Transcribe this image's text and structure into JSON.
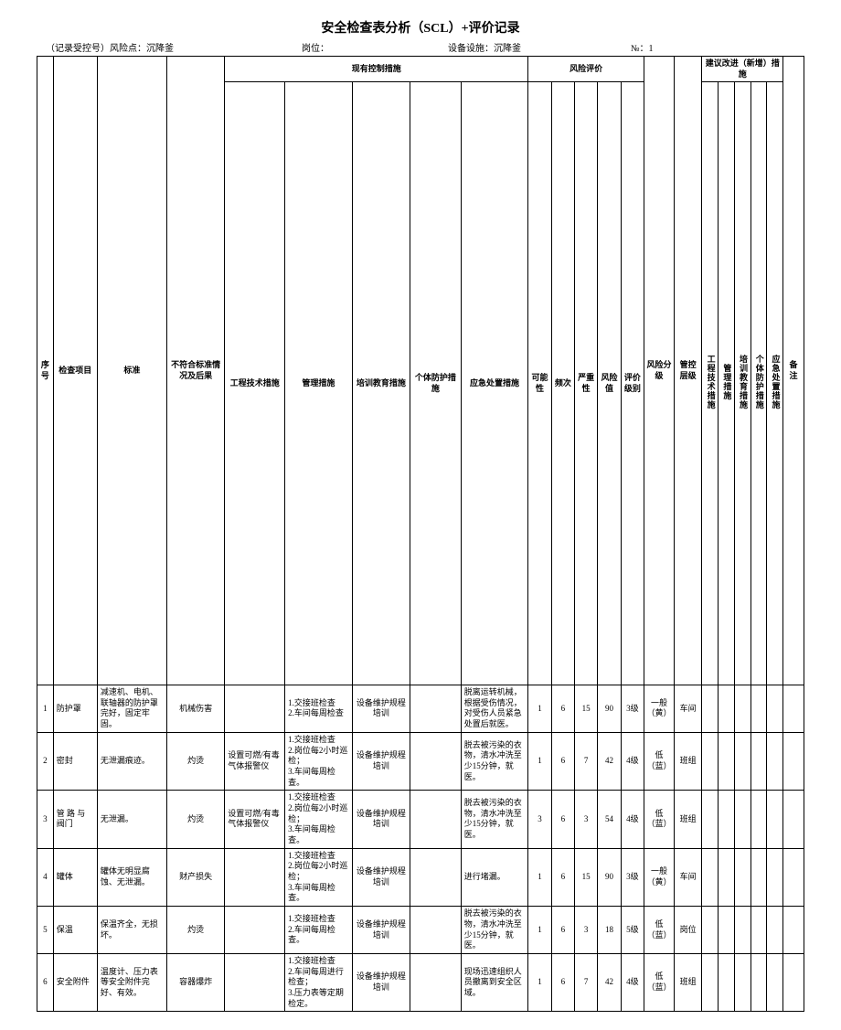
{
  "title": "安全检查表分析（SCL）+评价记录",
  "meta": {
    "record": "（记录受控号）风险点：沉降釜",
    "post": "岗位：",
    "equip": "设备设施：沉降釜",
    "no": "№：1"
  },
  "headers": {
    "seq": "序号",
    "item": "检查项目",
    "std": "标准",
    "nc": "不符合标准情况及后果",
    "measures_group": "现有控制措施",
    "risk_group": "风险评价",
    "suggest_group": "建议改进（新增）措施",
    "m1": "工程技术措施",
    "m2": "管理措施",
    "m3": "培训教育措施",
    "m4": "个体防护措施",
    "m5": "应急处置措施",
    "r1": "可能性",
    "r2": "频次",
    "r3": "严重性",
    "r4": "风险值",
    "r5": "评价级别",
    "riskg": "风险分级",
    "ctrl": "管控层级",
    "s1": "工程技术措施",
    "s2": "管理措施",
    "s3": "培训教育措施",
    "s4": "个体防护措施",
    "s5": "应急处置措施",
    "note": "备注"
  },
  "rows": [
    {
      "seq": "1",
      "item": "防护罩",
      "std": "减速机、电机、联轴器的防护罩完好，固定牢固。",
      "nc": "机械伤害",
      "m1": "",
      "m2": "1.交接班检查\n2.车间每周检查",
      "m3": "设备维护规程培训",
      "m4": "",
      "m5": "脱离运转机械，根据受伤情况，对受伤人员紧急处置后就医。",
      "r1": "1",
      "r2": "6",
      "r3": "15",
      "r4": "90",
      "r5": "3级",
      "riskg": "一般（黄）",
      "ctrl": "车间"
    },
    {
      "seq": "2",
      "item": "密封",
      "std": "无泄漏痕迹。",
      "nc": "灼烫",
      "m1": "设置可燃/有毒气体报警仪",
      "m2": "1.交接班检查\n2.岗位每2小时巡检；\n3.车间每周检查。",
      "m3": "设备维护规程培训",
      "m4": "",
      "m5": "脱去被污染的衣物，清水冲洗至少15分钟，就医。",
      "r1": "1",
      "r2": "6",
      "r3": "7",
      "r4": "42",
      "r5": "4级",
      "riskg": "低（蓝）",
      "ctrl": "班组"
    },
    {
      "seq": "3",
      "item": "管 路 与 阀门",
      "std": "无泄漏。",
      "nc": "灼烫",
      "m1": "设置可燃/有毒气体报警仪",
      "m2": "1.交接班检查\n2.岗位每2小时巡检；\n3.车间每周检查。",
      "m3": "设备维护规程培训",
      "m4": "",
      "m5": "脱去被污染的衣物，清水冲洗至少15分钟，就医。",
      "r1": "3",
      "r2": "6",
      "r3": "3",
      "r4": "54",
      "r5": "4级",
      "riskg": "低（蓝）",
      "ctrl": "班组"
    },
    {
      "seq": "4",
      "item": "罐体",
      "std": "罐体无明显腐蚀、无泄漏。",
      "nc": "财产损失",
      "m1": "",
      "m2": "1.交接班检查\n2.岗位每2小时巡检；\n3.车间每周检查。",
      "m3": "设备维护规程培训",
      "m4": "",
      "m5": "进行堵漏。",
      "r1": "1",
      "r2": "6",
      "r3": "15",
      "r4": "90",
      "r5": "3级",
      "riskg": "一般（黄）",
      "ctrl": "车间"
    },
    {
      "seq": "5",
      "item": "保温",
      "std": "保温齐全，无损坏。",
      "nc": "灼烫",
      "m1": "",
      "m2": "1.交接班检查\n2.车间每周检查。",
      "m3": "设备维护规程培训",
      "m4": "",
      "m5": "脱去被污染的衣物，清水冲洗至少15分钟，就医。",
      "r1": "1",
      "r2": "6",
      "r3": "3",
      "r4": "18",
      "r5": "5级",
      "riskg": "低（蓝）",
      "ctrl": "岗位"
    },
    {
      "seq": "6",
      "item": "安全附件",
      "std": "温度计、压力表等安全附件完好、有效。",
      "nc": "容器爆炸",
      "m1": "",
      "m2": "1.交接班检查\n2.车间每周进行检查；\n3.压力表等定期检定。",
      "m3": "设备维护规程培训",
      "m4": "",
      "m5": "现场迅速组织人员撤离到安全区域。",
      "r1": "1",
      "r2": "6",
      "r3": "7",
      "r4": "42",
      "r5": "4级",
      "riskg": "低（蓝）",
      "ctrl": "班组"
    }
  ]
}
